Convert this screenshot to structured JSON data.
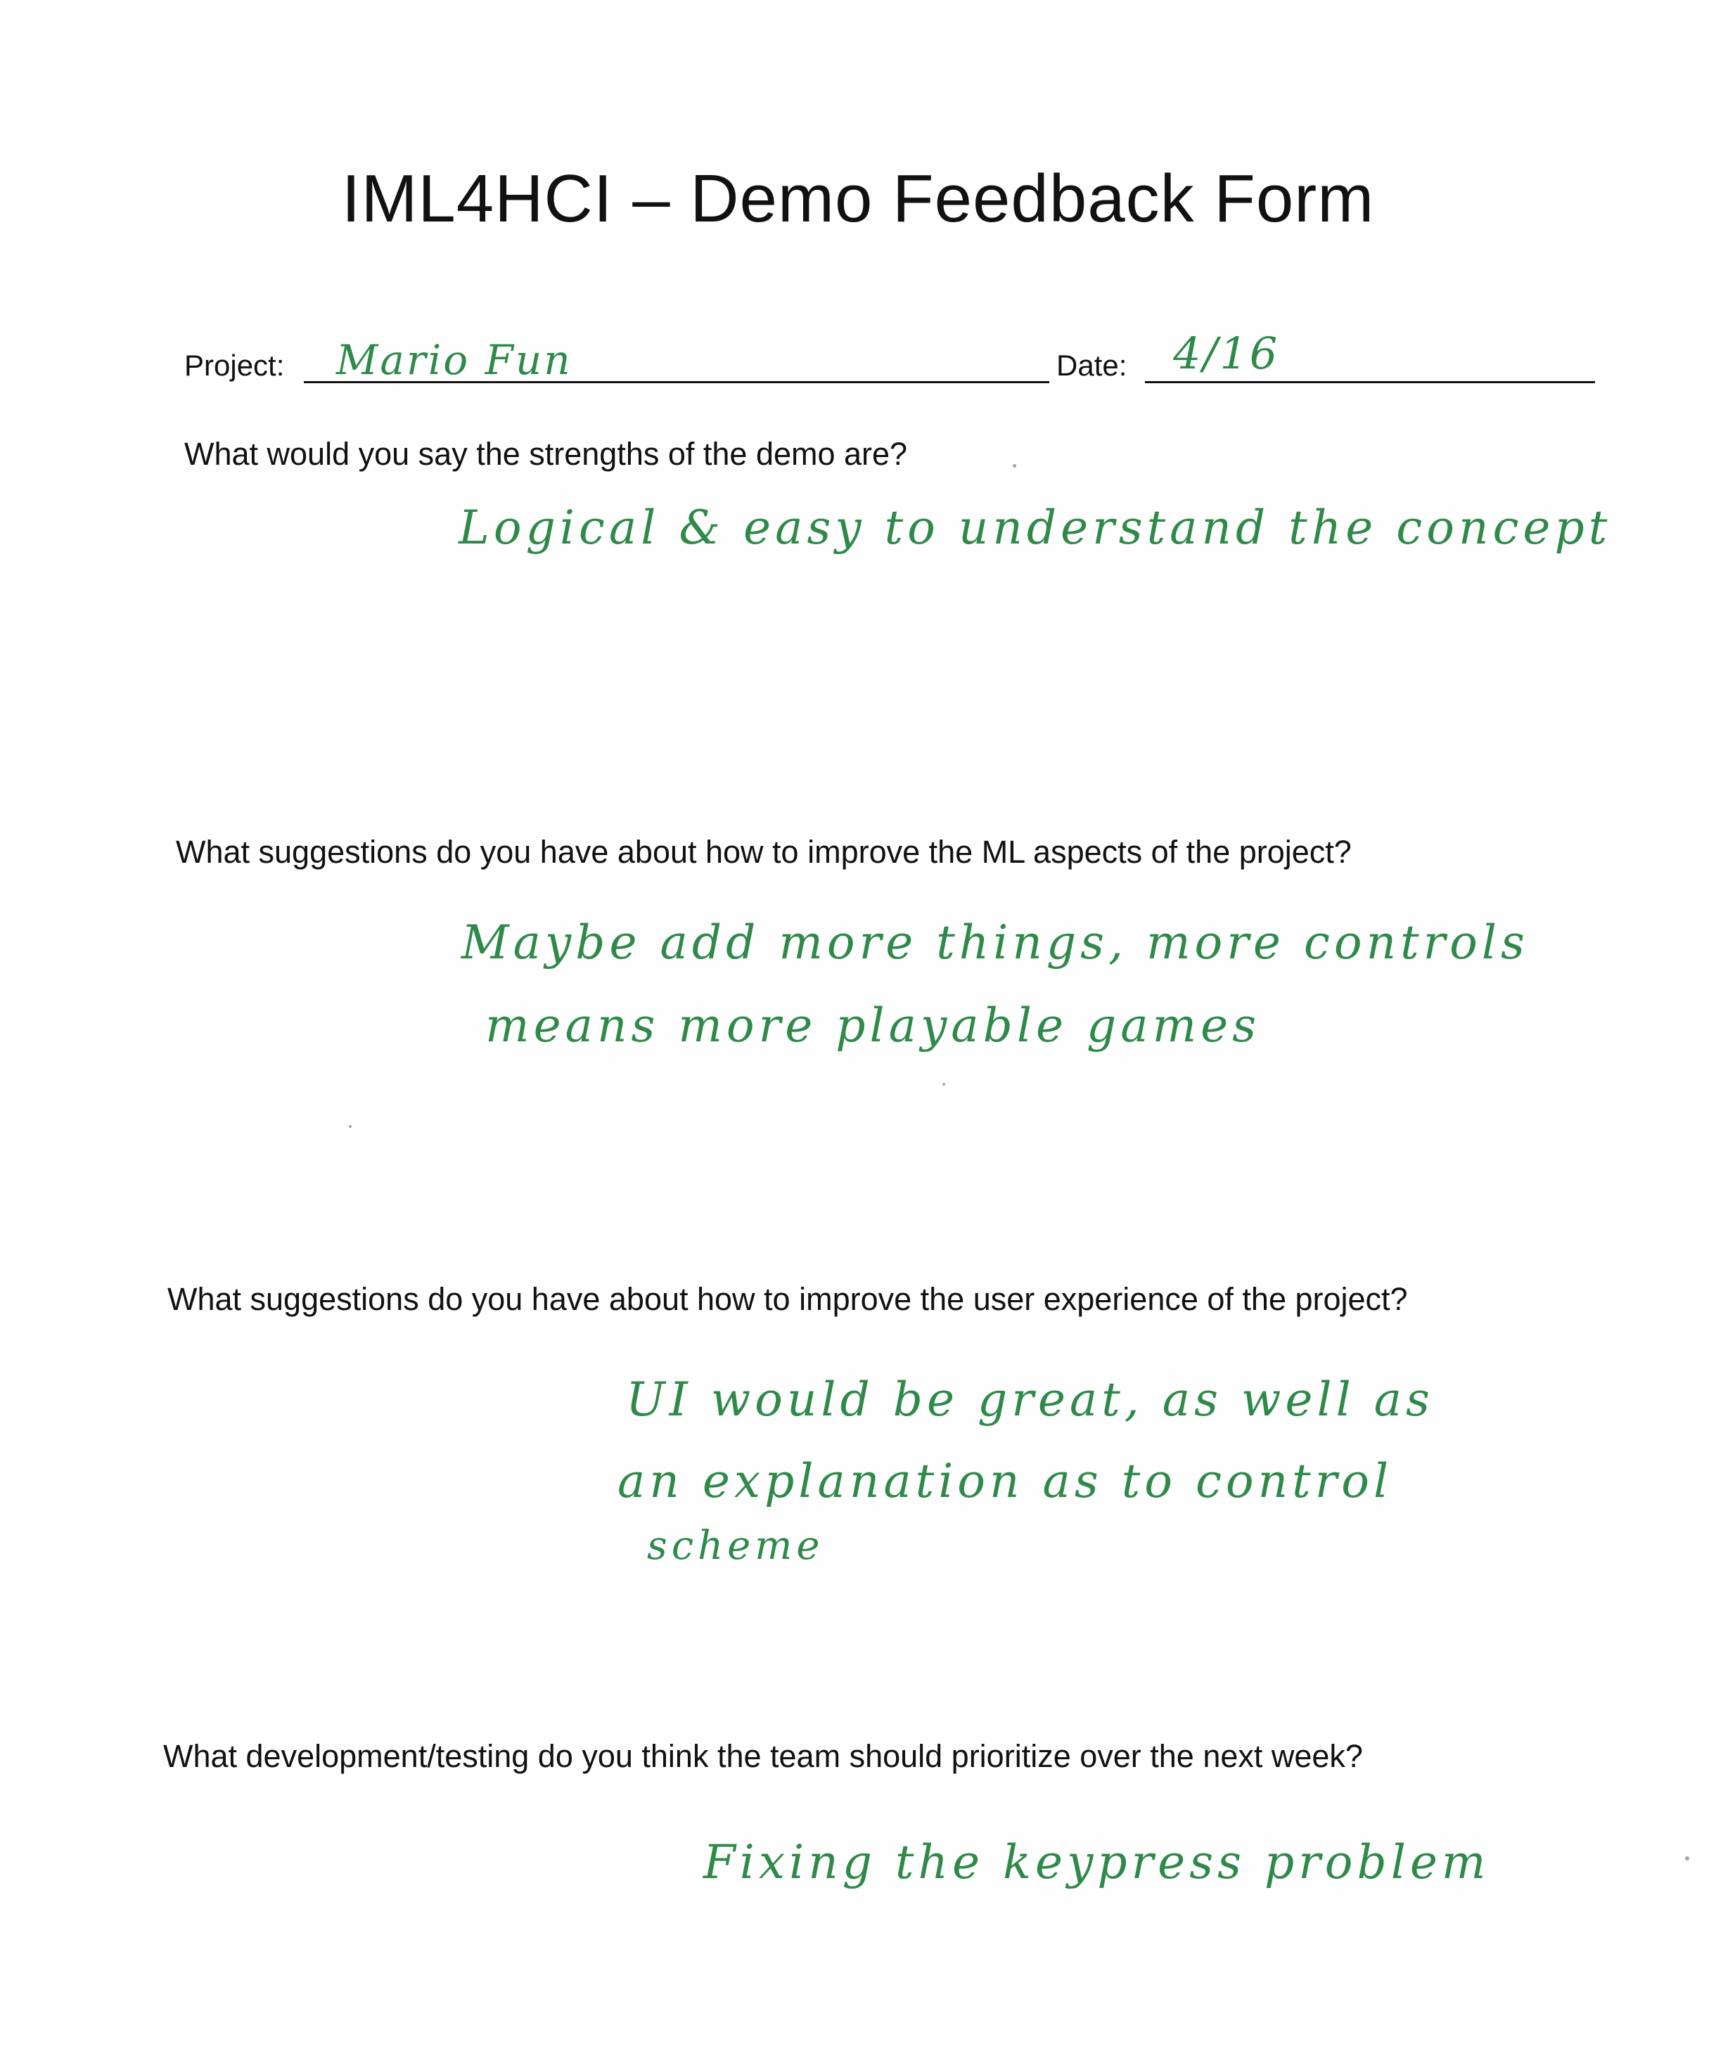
{
  "colors": {
    "ink": "#2f8a4a",
    "print": "#111111",
    "paper": "#fefefe"
  },
  "form": {
    "title": "IML4HCI – Demo Feedback Form",
    "project_label": "Project:",
    "project_value": "Mario Fun",
    "date_label": "Date:",
    "date_value": "4/16"
  },
  "questions": [
    {
      "prompt": "What would you say the strengths of the demo are?",
      "answer_lines": [
        "Logical & easy to understand the concept"
      ]
    },
    {
      "prompt": "What suggestions do you have about how to improve the ML aspects of the project?",
      "answer_lines": [
        "Maybe add more things, more controls",
        "means more playable games"
      ]
    },
    {
      "prompt": "What suggestions do you have about how to improve the user experience of the project?",
      "answer_lines": [
        "UI would be great, as well as",
        "an explanation as to control",
        "scheme"
      ]
    },
    {
      "prompt": "What development/testing do you think the team should prioritize over the next week?",
      "answer_lines": [
        "Fixing the keypress problem"
      ]
    }
  ]
}
